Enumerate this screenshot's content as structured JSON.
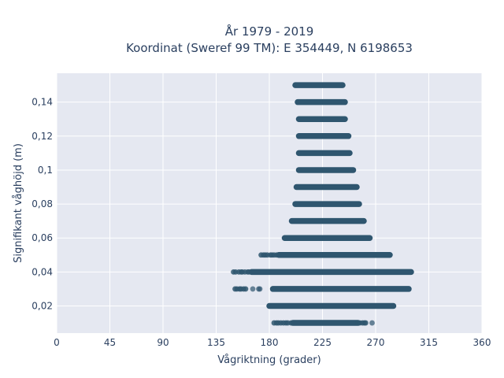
{
  "chart_data": {
    "type": "scatter",
    "title": "År 1979 - 2019",
    "subtitle": "Koordinat (Sweref 99 TM): E 354449, N 6198653",
    "xlabel": "Vågriktning (grader)",
    "ylabel": "Signifikant våghöjd (m)",
    "xlim": [
      0,
      360
    ],
    "ylim": [
      0.004,
      0.157
    ],
    "x_ticks": [
      0,
      45,
      90,
      135,
      180,
      225,
      270,
      315,
      360
    ],
    "x_tick_labels": [
      "0",
      "45",
      "90",
      "135",
      "180",
      "225",
      "270",
      "315",
      "360"
    ],
    "y_ticks": [
      0.02,
      0.04,
      0.06,
      0.08,
      0.1,
      0.12,
      0.14
    ],
    "y_tick_labels": [
      "0,02",
      "0,04",
      "0,06",
      "0,08",
      "0,1",
      "0,12",
      "0,14"
    ],
    "grid": true,
    "legend": false,
    "colors": {
      "marker": "#2f566f",
      "plot_bg": "#e5e8f1",
      "grid": "#ffffff",
      "text": "#2a3f5f"
    },
    "bands": [
      {
        "y": 0.01,
        "segments": [
          [
            184,
            200,
            "sparse"
          ],
          [
            200,
            255,
            "dense"
          ],
          [
            255,
            262,
            "sparse"
          ]
        ],
        "outliers": [
          267
        ]
      },
      {
        "y": 0.02,
        "segments": [
          [
            180,
            285,
            "dense"
          ]
        ],
        "outliers": []
      },
      {
        "y": 0.03,
        "segments": [
          [
            151,
            160,
            "sparse"
          ],
          [
            183,
            298,
            "dense"
          ]
        ],
        "outliers": [
          166,
          171,
          172
        ]
      },
      {
        "y": 0.04,
        "segments": [
          [
            150,
            165,
            "sparse"
          ],
          [
            165,
            300,
            "dense"
          ]
        ],
        "outliers": []
      },
      {
        "y": 0.05,
        "segments": [
          [
            173,
            188,
            "sparse"
          ],
          [
            188,
            282,
            "dense"
          ]
        ],
        "outliers": []
      },
      {
        "y": 0.06,
        "segments": [
          [
            193,
            265,
            "dense"
          ]
        ],
        "outliers": []
      },
      {
        "y": 0.07,
        "segments": [
          [
            199,
            260,
            "dense"
          ]
        ],
        "outliers": []
      },
      {
        "y": 0.08,
        "segments": [
          [
            202,
            256,
            "dense"
          ]
        ],
        "outliers": []
      },
      {
        "y": 0.09,
        "segments": [
          [
            203,
            254,
            "dense"
          ]
        ],
        "outliers": []
      },
      {
        "y": 0.1,
        "segments": [
          [
            205,
            251,
            "dense"
          ]
        ],
        "outliers": []
      },
      {
        "y": 0.11,
        "segments": [
          [
            205,
            248,
            "dense"
          ]
        ],
        "outliers": []
      },
      {
        "y": 0.12,
        "segments": [
          [
            205,
            247,
            "dense"
          ]
        ],
        "outliers": []
      },
      {
        "y": 0.13,
        "segments": [
          [
            205,
            244,
            "dense"
          ]
        ],
        "outliers": []
      },
      {
        "y": 0.14,
        "segments": [
          [
            204,
            244,
            "dense"
          ]
        ],
        "outliers": []
      },
      {
        "y": 0.15,
        "segments": [
          [
            202,
            242,
            "dense"
          ]
        ],
        "outliers": []
      }
    ]
  }
}
